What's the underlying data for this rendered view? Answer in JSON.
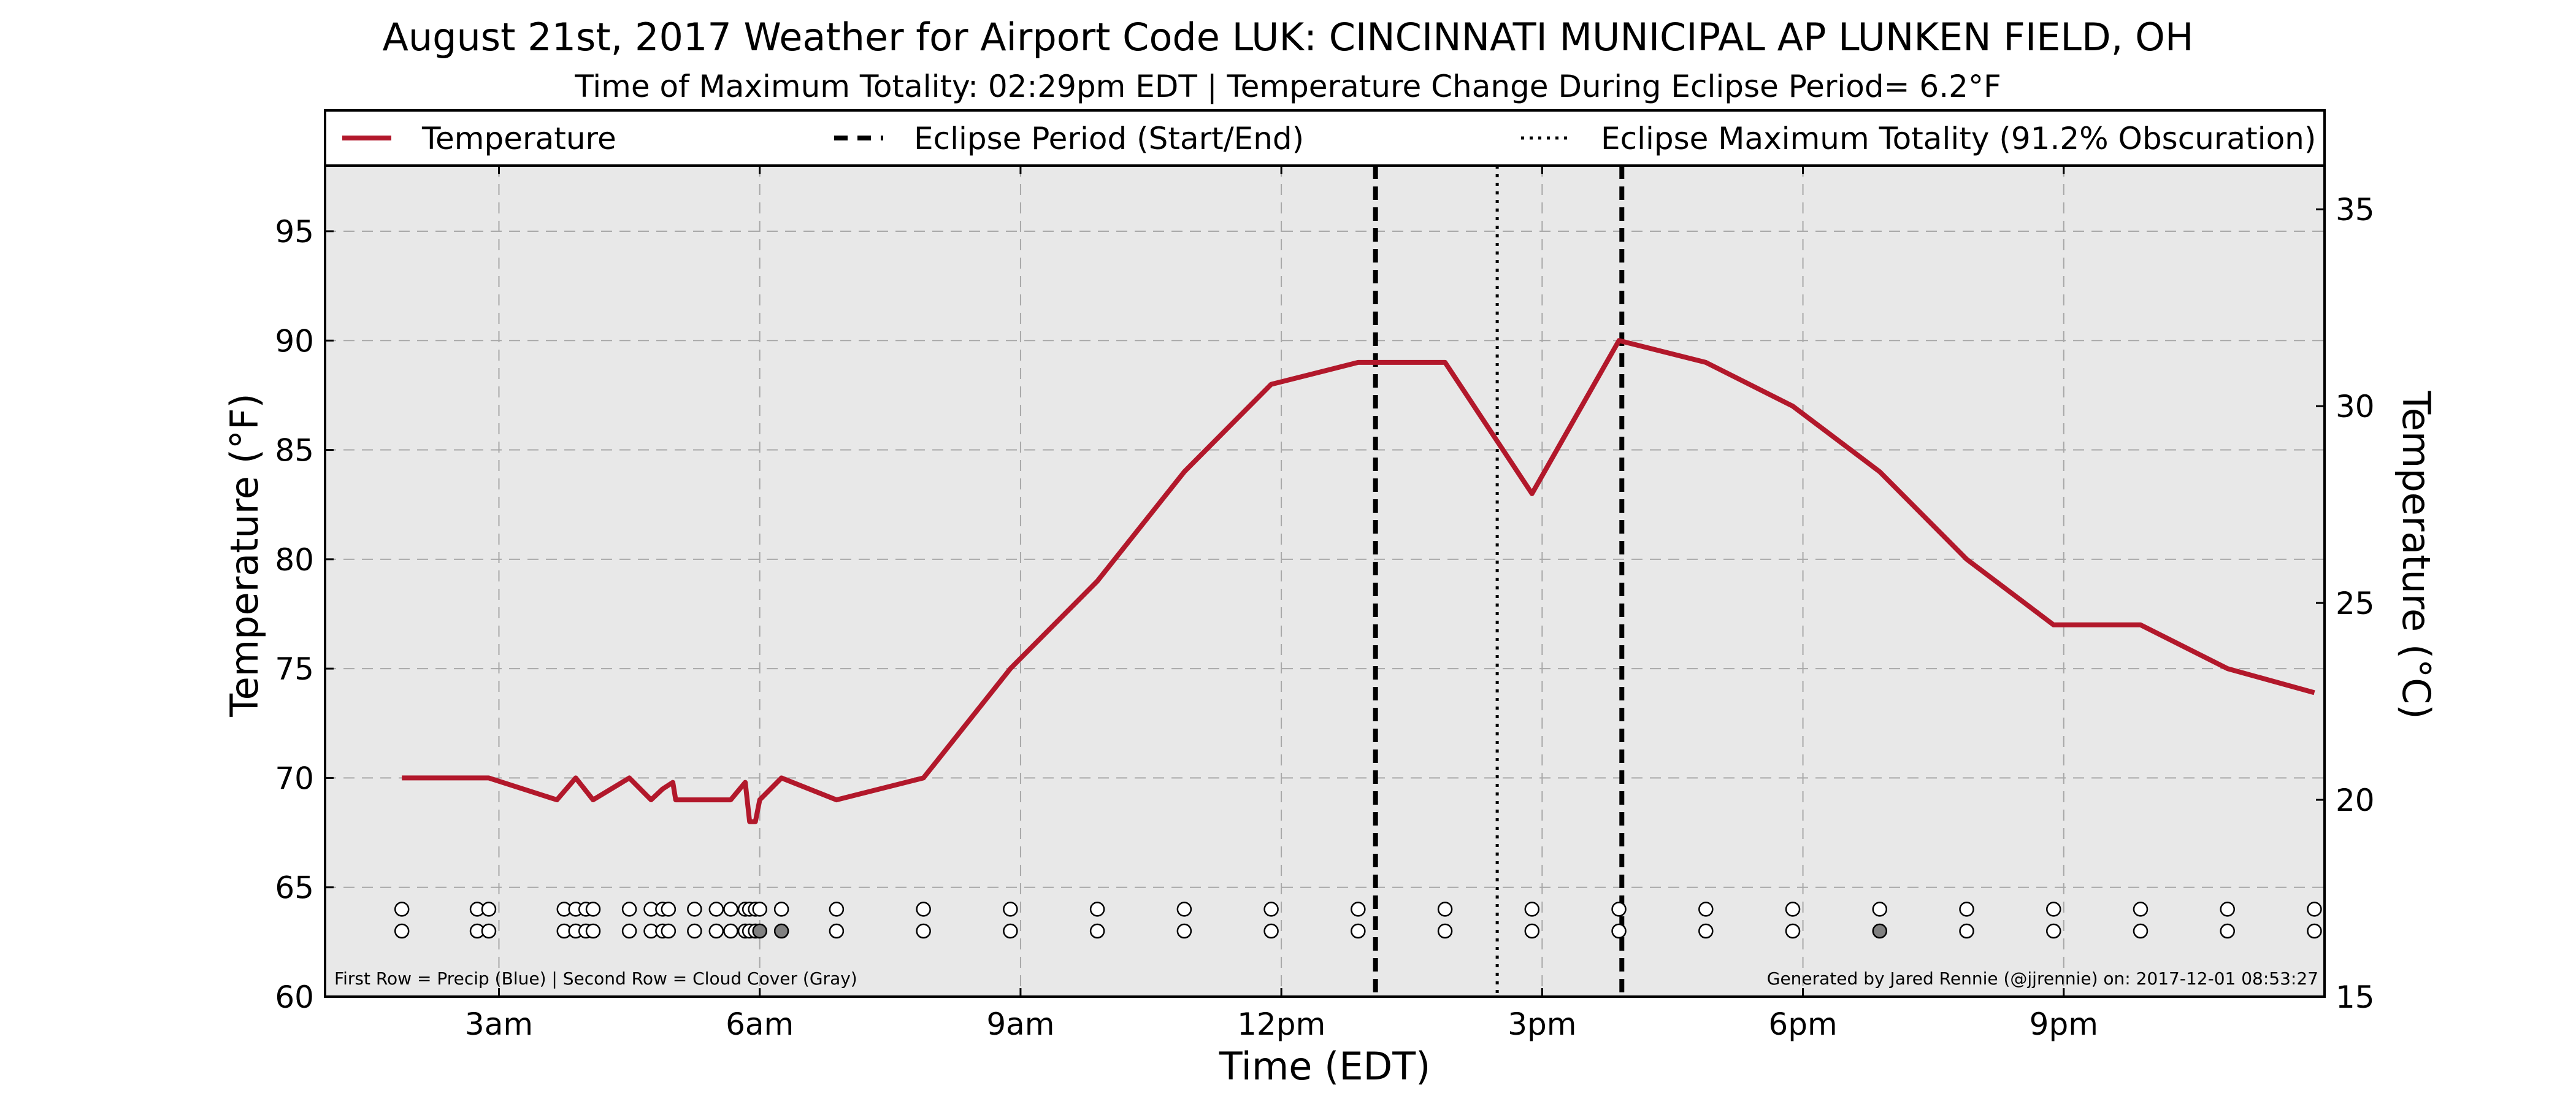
{
  "chart_data": {
    "type": "line",
    "title": "August 21st, 2017 Weather for Airport Code LUK: CINCINNATI MUNICIPAL AP LUNKEN FIELD, OH",
    "subtitle": "Time of Maximum Totality: 02:29pm EDT | Temperature Change During Eclipse Period= 6.2°F",
    "xlabel": "Time (EDT)",
    "ylabel": "Temperature (°F)",
    "ylabel_right": "Temperature (°C)",
    "xlim": [
      "01:00",
      "24:00"
    ],
    "ylim": [
      60,
      98
    ],
    "ylim_right": [
      15,
      36.11
    ],
    "grid": true,
    "legend_position": "top",
    "x_ticks": [
      {
        "t": "03:00",
        "label": "3am"
      },
      {
        "t": "06:00",
        "label": "6am"
      },
      {
        "t": "09:00",
        "label": "9am"
      },
      {
        "t": "12:00",
        "label": "12pm"
      },
      {
        "t": "15:00",
        "label": "3pm"
      },
      {
        "t": "18:00",
        "label": "6pm"
      },
      {
        "t": "21:00",
        "label": "9pm"
      }
    ],
    "y_ticks": [
      60,
      65,
      70,
      75,
      80,
      85,
      90,
      95
    ],
    "y_ticks_right": [
      15,
      20,
      25,
      30,
      35
    ],
    "series": [
      {
        "name": "Temperature",
        "color": "#b2182b",
        "points": [
          {
            "t": "01:53",
            "v": 70
          },
          {
            "t": "02:53",
            "v": 70
          },
          {
            "t": "03:40",
            "v": 69
          },
          {
            "t": "03:53",
            "v": 70
          },
          {
            "t": "04:05",
            "v": 69
          },
          {
            "t": "04:30",
            "v": 70
          },
          {
            "t": "04:45",
            "v": 69
          },
          {
            "t": "04:53",
            "v": 69.5
          },
          {
            "t": "05:00",
            "v": 69.8
          },
          {
            "t": "05:02",
            "v": 69
          },
          {
            "t": "05:40",
            "v": 69
          },
          {
            "t": "05:50",
            "v": 69.8
          },
          {
            "t": "05:53",
            "v": 68
          },
          {
            "t": "05:57",
            "v": 68
          },
          {
            "t": "06:00",
            "v": 69
          },
          {
            "t": "06:15",
            "v": 70
          },
          {
            "t": "06:53",
            "v": 69
          },
          {
            "t": "07:53",
            "v": 70
          },
          {
            "t": "08:53",
            "v": 75
          },
          {
            "t": "09:53",
            "v": 79
          },
          {
            "t": "10:53",
            "v": 84
          },
          {
            "t": "11:53",
            "v": 88
          },
          {
            "t": "12:53",
            "v": 89
          },
          {
            "t": "13:53",
            "v": 89
          },
          {
            "t": "14:53",
            "v": 83
          },
          {
            "t": "15:53",
            "v": 90
          },
          {
            "t": "16:53",
            "v": 89
          },
          {
            "t": "17:53",
            "v": 87
          },
          {
            "t": "18:53",
            "v": 84
          },
          {
            "t": "19:53",
            "v": 80
          },
          {
            "t": "20:53",
            "v": 77
          },
          {
            "t": "21:53",
            "v": 77
          },
          {
            "t": "22:53",
            "v": 75
          },
          {
            "t": "23:53",
            "v": 73.9
          }
        ]
      }
    ],
    "eclipse_start": "13:05",
    "eclipse_end": "15:55",
    "eclipse_max": "14:29",
    "legend": {
      "temperature": "Temperature",
      "eclipse_period": "Eclipse Period (Start/End)",
      "eclipse_max": "Eclipse Maximum Totality (91.2% Obscuration)"
    },
    "obs_rows": {
      "precip_row_value": 64,
      "cloud_row_value": 63,
      "times": [
        "01:53",
        "02:45",
        "02:53",
        "03:45",
        "03:53",
        "04:00",
        "04:05",
        "04:30",
        "04:45",
        "04:53",
        "04:57",
        "05:15",
        "05:30",
        "05:40",
        "05:50",
        "05:53",
        "05:57",
        "06:00",
        "06:15",
        "06:53",
        "07:53",
        "08:53",
        "09:53",
        "10:53",
        "11:53",
        "12:53",
        "13:53",
        "14:53",
        "15:53",
        "16:53",
        "17:53",
        "18:53",
        "19:53",
        "20:53",
        "21:53",
        "22:53",
        "23:53"
      ],
      "cloud_gray_times": [
        "06:00",
        "06:15",
        "18:53"
      ]
    },
    "footnote_left": "First Row = Precip (Blue) | Second Row = Cloud Cover (Gray)",
    "footnote_right": "Generated by Jared Rennie (@jjrennie) on: 2017-12-01 08:53:27",
    "colors": {
      "temperature": "#b2182b",
      "plot_background": "#e8e8e8",
      "cloud_gray": "#808080"
    }
  }
}
